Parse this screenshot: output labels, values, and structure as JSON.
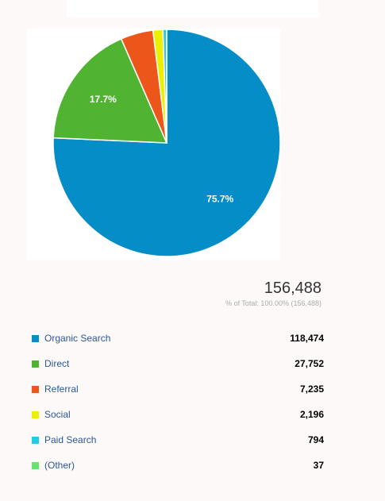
{
  "chart_data": {
    "type": "pie",
    "slices": [
      {
        "label": "Organic Search",
        "value": 118474,
        "color": "#058dc7",
        "display_pct": "75.7%"
      },
      {
        "label": "Direct",
        "value": 27752,
        "color": "#50b432",
        "display_pct": "17.7%"
      },
      {
        "label": "Referral",
        "value": 7235,
        "color": "#ed561b",
        "display_pct": ""
      },
      {
        "label": "Social",
        "value": 2196,
        "color": "#edef00",
        "display_pct": ""
      },
      {
        "label": "Paid Search",
        "value": 794,
        "color": "#24cbe5",
        "display_pct": ""
      },
      {
        "label": "(Other)",
        "value": 37,
        "color": "#64e572",
        "display_pct": ""
      }
    ],
    "total": "156,488",
    "total_subtitle": "% of Total: 100.00% (156,488)",
    "legend": [
      {
        "label": "Organic Search",
        "value": "118,474",
        "color": "#058dc7"
      },
      {
        "label": "Direct",
        "value": "27,752",
        "color": "#50b432"
      },
      {
        "label": "Referral",
        "value": "7,235",
        "color": "#ed561b"
      },
      {
        "label": "Social",
        "value": "2,196",
        "color": "#edef00"
      },
      {
        "label": "Paid Search",
        "value": "794",
        "color": "#24cbe5"
      },
      {
        "label": "(Other)",
        "value": "37",
        "color": "#64e572"
      }
    ]
  }
}
